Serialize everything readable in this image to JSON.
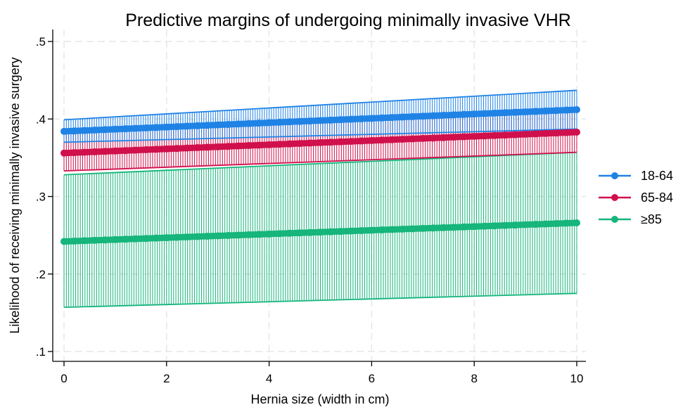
{
  "chart_data": {
    "type": "line",
    "title": "Predictive margins of undergoing minimally invasive VHR",
    "xlabel": "Hernia size (width in cm)",
    "ylabel": "Likelihood of receiving minimally invasive surgery",
    "xlim": [
      0,
      10
    ],
    "ylim": [
      0.1,
      0.5
    ],
    "x_ticks": [
      0,
      2,
      4,
      6,
      8,
      10
    ],
    "x_tick_labels": [
      "0",
      "2",
      "4",
      "6",
      "8",
      "10"
    ],
    "y_ticks": [
      0.1,
      0.2,
      0.3,
      0.4,
      0.5
    ],
    "y_tick_labels": [
      ".1",
      ".2",
      ".3",
      ".4",
      ".5"
    ],
    "grid": true,
    "legend_position": "right",
    "series": [
      {
        "name": "18-64",
        "color": "#1f83e6",
        "x": [
          0,
          10
        ],
        "y": [
          0.384,
          0.412
        ],
        "ci_lower": [
          0.37,
          0.387
        ],
        "ci_upper": [
          0.399,
          0.437
        ]
      },
      {
        "name": "65-84",
        "color": "#d0104c",
        "x": [
          0,
          10
        ],
        "y": [
          0.356,
          0.383
        ],
        "ci_lower": [
          0.333,
          0.357
        ],
        "ci_upper": [
          0.381,
          0.411
        ]
      },
      {
        "name": "≥85",
        "color": "#15b57c",
        "x": [
          0,
          10
        ],
        "y": [
          0.242,
          0.266
        ],
        "ci_lower": [
          0.157,
          0.175
        ],
        "ci_upper": [
          0.328,
          0.357
        ]
      }
    ]
  }
}
